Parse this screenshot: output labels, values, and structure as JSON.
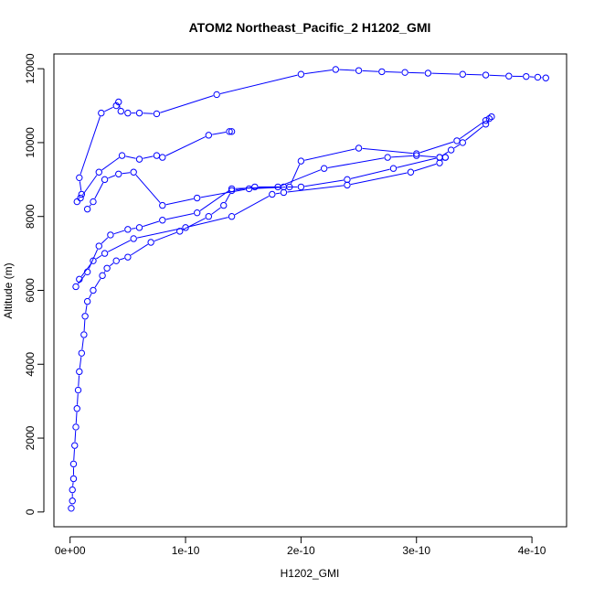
{
  "chart_data": {
    "type": "scatter",
    "title": "ATOM2 Northeast_Pacific_2 H1202_GMI",
    "xlabel": "H1202_GMI",
    "ylabel": "Altitude (m)",
    "xlim": [
      -1.4e-11,
      4.3e-10
    ],
    "ylim": [
      -400,
      12400
    ],
    "x_ticks": [
      0,
      1e-10,
      2e-10,
      3e-10,
      4e-10
    ],
    "x_tick_labels": [
      "0e+00",
      "1e-10",
      "2e-10",
      "3e-10",
      "4e-10"
    ],
    "y_ticks": [
      0,
      2000,
      4000,
      6000,
      8000,
      10000,
      12000
    ],
    "y_tick_labels": [
      "0",
      "2000",
      "4000",
      "6000",
      "8000",
      "10000",
      "12000"
    ],
    "grid": false,
    "legend": "none",
    "marker": "open-circle",
    "connected": true,
    "color": "#0000ff",
    "series": [
      {
        "points": [
          [
            1e-12,
            100
          ],
          [
            2e-12,
            300
          ],
          [
            2e-12,
            600
          ],
          [
            3e-12,
            900
          ],
          [
            3e-12,
            1300
          ],
          [
            4e-12,
            1800
          ],
          [
            5e-12,
            2300
          ],
          [
            6e-12,
            2800
          ],
          [
            7e-12,
            3300
          ],
          [
            8e-12,
            3800
          ],
          [
            1e-11,
            4300
          ],
          [
            1.2e-11,
            4800
          ],
          [
            1.3e-11,
            5300
          ],
          [
            1.5e-11,
            5700
          ],
          [
            2e-11,
            6000
          ],
          [
            2.8e-11,
            6400
          ],
          [
            3.2e-11,
            6600
          ],
          [
            4e-11,
            6800
          ],
          [
            5e-11,
            6900
          ],
          [
            7e-11,
            7300
          ],
          [
            9.5e-11,
            7600
          ],
          [
            1.2e-10,
            8000
          ],
          [
            1.33e-10,
            8300
          ],
          [
            1.4e-10,
            8700
          ],
          [
            1.6e-10,
            8800
          ],
          [
            1.85e-10,
            8800
          ],
          [
            2e-10,
            8800
          ],
          [
            2.4e-10,
            9000
          ],
          [
            2.8e-10,
            9300
          ],
          [
            3.2e-10,
            9600
          ],
          [
            3.3e-10,
            9800
          ],
          [
            3.4e-10,
            10000
          ],
          [
            3.6e-10,
            10500
          ],
          [
            3.65e-10,
            10700
          ]
        ]
      },
      {
        "points": [
          [
            6e-12,
            8400
          ],
          [
            1e-11,
            8600
          ],
          [
            8e-12,
            9050
          ],
          [
            2.7e-11,
            10800
          ],
          [
            4e-11,
            11000
          ],
          [
            4.2e-11,
            11100
          ],
          [
            4.4e-11,
            10850
          ],
          [
            5e-11,
            10800
          ],
          [
            6e-11,
            10800
          ],
          [
            7.5e-11,
            10780
          ],
          [
            1.27e-10,
            11300
          ],
          [
            2e-10,
            11850
          ],
          [
            2.3e-10,
            11980
          ],
          [
            2.5e-10,
            11950
          ],
          [
            2.7e-10,
            11920
          ],
          [
            2.9e-10,
            11900
          ],
          [
            3.1e-10,
            11880
          ],
          [
            3.4e-10,
            11850
          ],
          [
            3.6e-10,
            11830
          ],
          [
            3.8e-10,
            11800
          ],
          [
            3.95e-10,
            11790
          ],
          [
            4.05e-10,
            11770
          ],
          [
            4.12e-10,
            11750
          ]
        ]
      },
      {
        "points": [
          [
            9e-12,
            8500
          ],
          [
            2.5e-11,
            9200
          ],
          [
            4.5e-11,
            9650
          ],
          [
            6e-11,
            9550
          ],
          [
            7.5e-11,
            9650
          ],
          [
            8e-11,
            9600
          ],
          [
            1.2e-10,
            10200
          ],
          [
            1.38e-10,
            10300
          ],
          [
            1.4e-10,
            10300
          ]
        ]
      },
      {
        "points": [
          [
            1.5e-11,
            8200
          ],
          [
            2e-11,
            8400
          ],
          [
            3e-11,
            9000
          ],
          [
            4.2e-11,
            9150
          ],
          [
            5.5e-11,
            9200
          ],
          [
            8e-11,
            8300
          ],
          [
            1.1e-10,
            8500
          ],
          [
            1.55e-10,
            8750
          ],
          [
            1.9e-10,
            8800
          ],
          [
            2e-10,
            9500
          ],
          [
            2.5e-10,
            9850
          ],
          [
            3e-10,
            9700
          ],
          [
            3.35e-10,
            10050
          ],
          [
            3.6e-10,
            10600
          ],
          [
            3.63e-10,
            10650
          ]
        ]
      },
      {
        "points": [
          [
            5e-12,
            6100
          ],
          [
            1.5e-11,
            6500
          ],
          [
            2.5e-11,
            7200
          ],
          [
            3.5e-11,
            7500
          ],
          [
            5e-11,
            7650
          ],
          [
            6e-11,
            7700
          ],
          [
            8e-11,
            7900
          ],
          [
            1.1e-10,
            8100
          ],
          [
            1.4e-10,
            8750
          ],
          [
            1.8e-10,
            8800
          ],
          [
            2.2e-10,
            9300
          ],
          [
            2.75e-10,
            9600
          ],
          [
            3e-10,
            9650
          ],
          [
            3.2e-10,
            9600
          ],
          [
            3.25e-10,
            9600
          ]
        ]
      },
      {
        "points": [
          [
            8e-12,
            6300
          ],
          [
            2e-11,
            6800
          ],
          [
            3e-11,
            7000
          ],
          [
            5.5e-11,
            7400
          ],
          [
            1e-10,
            7700
          ],
          [
            1.4e-10,
            8000
          ],
          [
            1.75e-10,
            8600
          ],
          [
            1.85e-10,
            8650
          ],
          [
            2.4e-10,
            8850
          ],
          [
            2.95e-10,
            9200
          ],
          [
            3.2e-10,
            9450
          ],
          [
            3.25e-10,
            9600
          ]
        ]
      }
    ]
  }
}
